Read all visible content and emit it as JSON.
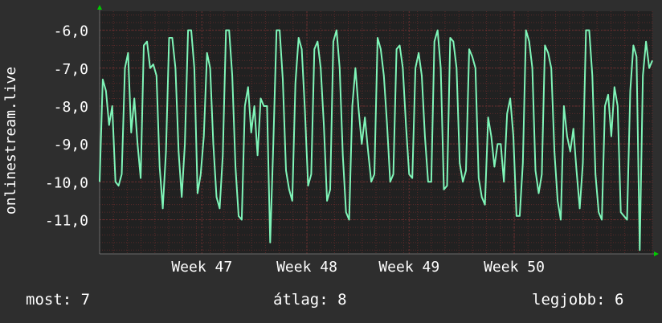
{
  "colors": {
    "background": "#2e2e2e",
    "plot_background": "#212121",
    "grid_minor": "#5a2a2a",
    "grid_major": "#6a3030",
    "series": "#7ff5b8",
    "axis_arrow": "#00cc00",
    "text": "#ffffff"
  },
  "chart_data": {
    "type": "line",
    "ylabel": "onlinestream.live",
    "yticks": [
      -6,
      -7,
      -8,
      -9,
      -10,
      -11
    ],
    "ytick_labels": [
      "-6,0",
      "-7,0",
      "-8,0",
      "-9,0",
      "-10,0",
      "-11,0"
    ],
    "ylim": [
      -11.9,
      -5.5
    ],
    "xlim": [
      0,
      20
    ],
    "xticks": [
      3.7,
      7.5,
      11.2,
      15.0
    ],
    "xtick_labels": [
      "Week 47",
      "Week 48",
      "Week 49",
      "Week 50"
    ],
    "grid": true,
    "series": [
      {
        "values": [
          -10.0,
          -7.3,
          -7.6,
          -8.5,
          -8.0,
          -10.0,
          -10.1,
          -9.8,
          -7.0,
          -6.6,
          -8.7,
          -7.8,
          -9.0,
          -9.9,
          -6.4,
          -6.3,
          -7.0,
          -6.9,
          -7.2,
          -9.6,
          -10.7,
          -9.2,
          -6.2,
          -6.2,
          -7.0,
          -9.2,
          -10.4,
          -9.0,
          -6.0,
          -6.0,
          -7.0,
          -10.3,
          -9.8,
          -8.8,
          -6.6,
          -7.0,
          -9.0,
          -10.4,
          -10.7,
          -9.3,
          -6.0,
          -6.0,
          -7.2,
          -9.6,
          -10.9,
          -11.0,
          -8.0,
          -7.5,
          -8.7,
          -8.0,
          -9.3,
          -7.8,
          -8.0,
          -8.0,
          -11.6,
          -9.0,
          -6.0,
          -6.0,
          -7.3,
          -9.7,
          -10.2,
          -10.5,
          -7.4,
          -6.2,
          -6.5,
          -8.1,
          -10.1,
          -9.8,
          -6.5,
          -6.3,
          -7.0,
          -8.5,
          -10.5,
          -10.2,
          -6.3,
          -6.0,
          -7.0,
          -9.3,
          -10.8,
          -11.0,
          -8.0,
          -7.0,
          -8.1,
          -9.0,
          -8.3,
          -9.2,
          -10.0,
          -9.8,
          -6.2,
          -6.5,
          -7.2,
          -8.5,
          -10.0,
          -9.8,
          -6.5,
          -6.4,
          -7.0,
          -8.5,
          -9.8,
          -9.9,
          -7.0,
          -6.6,
          -7.2,
          -8.8,
          -10.0,
          -10.0,
          -6.3,
          -6.0,
          -7.0,
          -10.2,
          -10.1,
          -6.2,
          -6.3,
          -7.0,
          -9.5,
          -10.0,
          -9.7,
          -6.5,
          -6.7,
          -7.0,
          -9.9,
          -10.4,
          -10.6,
          -8.3,
          -8.8,
          -9.6,
          -9.0,
          -9.0,
          -10.0,
          -8.2,
          -7.8,
          -8.8,
          -10.9,
          -10.9,
          -9.5,
          -6.0,
          -6.3,
          -7.0,
          -9.7,
          -10.3,
          -9.8,
          -6.4,
          -6.6,
          -7.0,
          -9.2,
          -10.5,
          -11.0,
          -8.0,
          -8.8,
          -9.2,
          -8.6,
          -9.7,
          -10.7,
          -9.5,
          -6.0,
          -6.0,
          -7.2,
          -9.8,
          -10.8,
          -11.0,
          -8.0,
          -7.7,
          -8.8,
          -7.5,
          -8.0,
          -10.8,
          -10.9,
          -11.0,
          -7.6,
          -6.4,
          -6.7,
          -11.8,
          -7.2,
          -6.3,
          -7.0,
          -6.8
        ],
        "color": "#7ff5b8"
      }
    ]
  },
  "footer": {
    "current": "most: 7",
    "average": "átlag: 8",
    "best": "legjobb: 6"
  }
}
